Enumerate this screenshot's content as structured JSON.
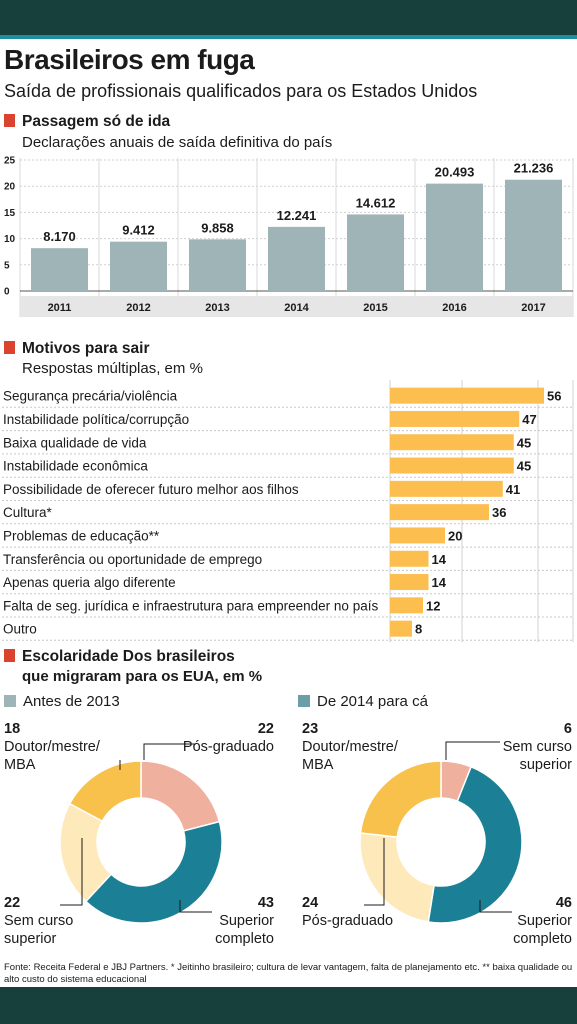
{
  "title": "Brasileiros em fuga",
  "subtitle": "Saída de profissionais qualificados para os Estados Unidos",
  "section1": {
    "title": "Passagem só de ida",
    "subtitle": "Declarações anuais de saída definitiva do país"
  },
  "section2": {
    "title": "Motivos para sair",
    "subtitle": "Respostas múltiplas, em %"
  },
  "section3": {
    "title": "Escolaridade Dos brasileiros",
    "subtitle": "que migraram para os EUA, em %"
  },
  "colors": {
    "bar": "#9fb4b7",
    "hbar": "#fbbe4f",
    "teal": "#1b7f95",
    "yellow": "#f8c14c",
    "salmon": "#efb09d",
    "cream": "#fde9ba",
    "marker": "#d9432f"
  },
  "chart_data": [
    {
      "type": "bar",
      "title": "Passagem só de ida",
      "subtitle": "Declarações anuais de saída definitiva do país",
      "categories": [
        "2011",
        "2012",
        "2013",
        "2014",
        "2015",
        "2016",
        "2017"
      ],
      "values": [
        8170,
        9412,
        9858,
        12241,
        14612,
        20493,
        21236
      ],
      "value_labels": [
        "8.170",
        "9.412",
        "9.858",
        "12.241",
        "14.612",
        "20.493",
        "21.236"
      ],
      "yticks": [
        "0",
        "5",
        "10",
        "15",
        "20",
        "25"
      ],
      "ylim": [
        0,
        25000
      ],
      "grid": true
    },
    {
      "type": "bar",
      "orientation": "horizontal",
      "title": "Motivos para sair",
      "subtitle": "Respostas múltiplas, em %",
      "categories": [
        "Segurança precária/violência",
        "Instabilidade política/corrupção",
        "Baixa qualidade de vida",
        "Instabilidade econômica",
        "Possibilidade de oferecer futuro melhor aos filhos",
        "Cultura*",
        "Problemas de educação**",
        "Transferência ou oportunidade de emprego",
        "Apenas queria algo diferente",
        "Falta de seg. jurídica e infraestrutura para empreender no país",
        "Outro"
      ],
      "values": [
        56,
        47,
        45,
        45,
        41,
        36,
        20,
        14,
        14,
        12,
        8
      ],
      "xlim": [
        0,
        60
      ],
      "grid": true
    },
    {
      "type": "pie",
      "variant": "donut",
      "legend": "Antes de 2013",
      "slices": [
        {
          "value": 22,
          "label": "Pós-graduado",
          "color": "#efb09d"
        },
        {
          "value": 43,
          "label": "Superior completo",
          "color": "#1b7f95"
        },
        {
          "value": 22,
          "label": "Sem curso superior",
          "color": "#fde9ba"
        },
        {
          "value": 18,
          "label": "Doutor/mestre/ MBA",
          "color": "#f8c14c"
        }
      ]
    },
    {
      "type": "pie",
      "variant": "donut",
      "legend": "De 2014 para cá",
      "slices": [
        {
          "value": 6,
          "label": "Sem curso superior",
          "color": "#efb09d"
        },
        {
          "value": 46,
          "label": "Superior completo",
          "color": "#1b7f95"
        },
        {
          "value": 24,
          "label": "Pós-graduado",
          "color": "#fde9ba"
        },
        {
          "value": 23,
          "label": "Doutor/mestre/ MBA",
          "color": "#f8c14c"
        }
      ]
    }
  ],
  "donut_labels": {
    "left": {
      "tl_num": "18",
      "tl_lab1": "Doutor/mestre/",
      "tl_lab2": "MBA",
      "tr_num": "22",
      "tr_lab": "Pós-graduado",
      "bl_num": "22",
      "bl_lab1": "Sem curso",
      "bl_lab2": "superior",
      "br_num": "43",
      "br_lab1": "Superior",
      "br_lab2": "completo"
    },
    "right": {
      "tl_num": "23",
      "tl_lab1": "Doutor/mestre/",
      "tl_lab2": "MBA",
      "tr_num": "6",
      "tr_lab1": "Sem curso",
      "tr_lab2": "superior",
      "bl_num": "24",
      "bl_lab": "Pós-graduado",
      "br_num": "46",
      "br_lab1": "Superior",
      "br_lab2": "completo"
    }
  },
  "source": "Fonte: Receita Federal e JBJ Partners. * Jeitinho brasileiro; cultura de levar vantagem, falta de planejamento etc. ** baixa qualidade ou alto custo do sistema educacional"
}
